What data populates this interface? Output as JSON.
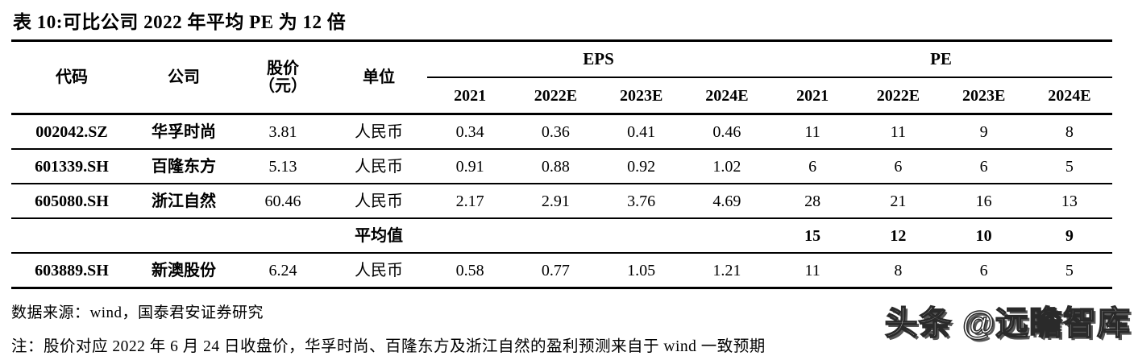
{
  "title": "表 10:可比公司 2022 年平均 PE 为 12 倍",
  "table": {
    "columns": {
      "code": "代码",
      "company": "公司",
      "price_line1": "股价",
      "price_line2": "（元）",
      "unit": "单位"
    },
    "groups": [
      {
        "label": "EPS"
      },
      {
        "label": "PE"
      }
    ],
    "years": [
      "2021",
      "2022E",
      "2023E",
      "2024E"
    ],
    "rows": [
      {
        "code": "002042.SZ",
        "company": "华孚时尚",
        "price": "3.81",
        "currency": "人民币",
        "eps": [
          "0.34",
          "0.36",
          "0.41",
          "0.46"
        ],
        "pe": [
          "11",
          "11",
          "9",
          "8"
        ]
      },
      {
        "code": "601339.SH",
        "company": "百隆东方",
        "price": "5.13",
        "currency": "人民币",
        "eps": [
          "0.91",
          "0.88",
          "0.92",
          "1.02"
        ],
        "pe": [
          "6",
          "6",
          "6",
          "5"
        ]
      },
      {
        "code": "605080.SH",
        "company": "浙江自然",
        "price": "60.46",
        "currency": "人民币",
        "eps": [
          "2.17",
          "2.91",
          "3.76",
          "4.69"
        ],
        "pe": [
          "28",
          "21",
          "16",
          "13"
        ]
      }
    ],
    "average": {
      "label": "平均值",
      "pe": [
        "15",
        "12",
        "10",
        "9"
      ]
    },
    "last_row": {
      "code": "603889.SH",
      "company": "新澳股份",
      "price": "6.24",
      "currency": "人民币",
      "eps": [
        "0.58",
        "0.77",
        "1.05",
        "1.21"
      ],
      "pe": [
        "11",
        "8",
        "6",
        "5"
      ]
    }
  },
  "source": "数据来源：wind，国泰君安证券研究",
  "note": "注：股价对应 2022 年 6 月 24 日收盘价，华孚时尚、百隆东方及浙江自然的盈利预测来自于 wind 一致预期",
  "watermark": "头条 @远瞻智库",
  "colors": {
    "text": "#000000",
    "background": "#ffffff",
    "rule": "#000000",
    "watermark_fill": "#ffffff",
    "watermark_outline": "#2a2a2a"
  }
}
